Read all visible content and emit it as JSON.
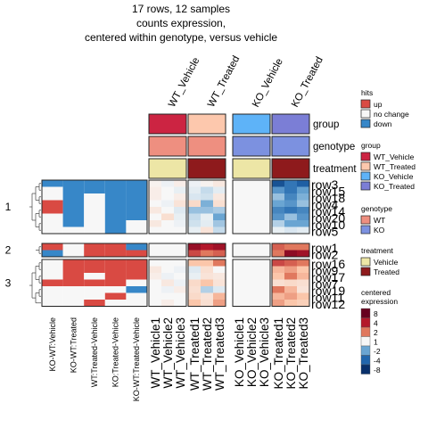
{
  "chart_data": {
    "type": "heatmap",
    "title_lines": [
      "17 rows, 12 samples",
      "counts expression,",
      "centered within genotype, versus vehicle"
    ],
    "column_groups": [
      "WT_Vehicle",
      "WT_Treated",
      "KO_Vehicle",
      "KO_Treated"
    ],
    "columns": [
      "WT_Vehicle1",
      "WT_Vehicle2",
      "WT_Vehicle3",
      "WT_Treated1",
      "WT_Treated2",
      "WT_Treated3",
      "KO_Vehicle1",
      "KO_Vehicle2",
      "KO_Vehicle3",
      "KO_Treated1",
      "KO_Treated2",
      "KO_Treated3"
    ],
    "column_annotation_labels": [
      "group",
      "genotype",
      "treatment"
    ],
    "column_annotations": {
      "group": [
        "WT_Vehicle",
        "WT_Vehicle",
        "WT_Vehicle",
        "WT_Treated",
        "WT_Treated",
        "WT_Treated",
        "KO_Vehicle",
        "KO_Vehicle",
        "KO_Vehicle",
        "KO_Treated",
        "KO_Treated",
        "KO_Treated"
      ],
      "genotype": [
        "WT",
        "WT",
        "WT",
        "WT",
        "WT",
        "WT",
        "KO",
        "KO",
        "KO",
        "KO",
        "KO",
        "KO"
      ],
      "treatment": [
        "Vehicle",
        "Vehicle",
        "Vehicle",
        "Treated",
        "Treated",
        "Treated",
        "Vehicle",
        "Vehicle",
        "Vehicle",
        "Treated",
        "Treated",
        "Treated"
      ]
    },
    "hit_columns": [
      "KO-WT:Vehicle",
      "KO-WT:Treated",
      "WT:Treated-Vehicle",
      "KO:Treated-Vehicle",
      "KO-WT:Treated-Vehicle"
    ],
    "row_clusters": [
      {
        "label": "1",
        "rows": [
          "row3",
          "row15",
          "row18",
          "row4",
          "row14",
          "row20",
          "row10",
          "row5"
        ]
      },
      {
        "label": "2",
        "rows": [
          "row1",
          "row2"
        ]
      },
      {
        "label": "3",
        "rows": [
          "row16",
          "row9",
          "row17",
          "row7",
          "row19",
          "row11",
          "row12"
        ]
      }
    ],
    "hits": {
      "row3": [
        "down",
        "down",
        "down",
        "down",
        "down"
      ],
      "row15": [
        "no change",
        "down",
        "down",
        "down",
        "down"
      ],
      "row18": [
        "no change",
        "down",
        "no change",
        "down",
        "down"
      ],
      "row4": [
        "up",
        "down",
        "no change",
        "down",
        "down"
      ],
      "row14": [
        "up",
        "down",
        "no change",
        "down",
        "down"
      ],
      "row20": [
        "no change",
        "down",
        "no change",
        "down",
        "down"
      ],
      "row10": [
        "no change",
        "down",
        "no change",
        "down",
        "no change"
      ],
      "row5": [
        "no change",
        "no change",
        "no change",
        "down",
        "no change"
      ],
      "row1": [
        "up",
        "no change",
        "up",
        "up",
        "down"
      ],
      "row2": [
        "down",
        "no change",
        "up",
        "up",
        "up"
      ],
      "row16": [
        "no change",
        "up",
        "up",
        "up",
        "up"
      ],
      "row9": [
        "no change",
        "up",
        "up",
        "up",
        "up"
      ],
      "row17": [
        "no change",
        "up",
        "no change",
        "up",
        "up"
      ],
      "row7": [
        "up",
        "up",
        "up",
        "up",
        "no change"
      ],
      "row19": [
        "no change",
        "no change",
        "no change",
        "no change",
        "down"
      ],
      "row11": [
        "no change",
        "no change",
        "no change",
        "up",
        "no change"
      ],
      "row12": [
        "no change",
        "no change",
        "up",
        "no change",
        "no change"
      ]
    },
    "values": {
      "row3": [
        0.1,
        -0.2,
        0.2,
        -0.2,
        0.1,
        0.3,
        0.0,
        0.0,
        0.0,
        -5.5,
        -3.5,
        -4.5
      ],
      "row15": [
        0.2,
        0.0,
        -0.3,
        -0.4,
        -1.0,
        -0.4,
        0.0,
        0.0,
        0.0,
        -2.5,
        -3.5,
        -2.2
      ],
      "row18": [
        0.2,
        0.0,
        0.2,
        -0.6,
        -0.8,
        0.3,
        0.0,
        0.0,
        0.0,
        -1.5,
        -3.0,
        -1.8
      ],
      "row4": [
        0.0,
        -0.2,
        0.4,
        0.6,
        -1.8,
        0.5,
        0.0,
        0.0,
        0.0,
        -2.0,
        -2.5,
        -1.5
      ],
      "row14": [
        0.3,
        0.0,
        -0.5,
        -1.5,
        -1.5,
        -1.3,
        0.0,
        0.0,
        0.0,
        -3.0,
        -3.5,
        -3.0
      ],
      "row20": [
        0.0,
        0.5,
        -0.3,
        -1.0,
        -0.3,
        -2.0,
        0.0,
        0.0,
        0.0,
        -2.5,
        -1.5,
        -2.5
      ],
      "row10": [
        0.3,
        0.0,
        -0.2,
        -0.8,
        -0.4,
        -1.4,
        0.0,
        0.0,
        0.0,
        -1.2,
        -2.0,
        -2.0
      ],
      "row5": [
        0.0,
        0.0,
        0.0,
        -0.3,
        0.4,
        -1.0,
        0.0,
        0.0,
        0.0,
        -0.3,
        -0.6,
        -0.4
      ],
      "row1": [
        0.0,
        0.0,
        0.0,
        5.5,
        4.0,
        5.0,
        0.0,
        0.0,
        0.0,
        2.5,
        2.0,
        2.0
      ],
      "row2": [
        0.0,
        0.0,
        0.0,
        3.0,
        2.0,
        2.5,
        0.0,
        0.0,
        0.0,
        2.0,
        6.0,
        5.0
      ],
      "row16": [
        0.0,
        0.0,
        0.0,
        1.0,
        1.0,
        2.0,
        0.0,
        0.0,
        0.0,
        3.0,
        2.5,
        2.0
      ],
      "row9": [
        0.3,
        0.0,
        -0.2,
        -0.5,
        0.5,
        0.0,
        0.0,
        0.0,
        0.0,
        1.2,
        1.5,
        1.0
      ],
      "row17": [
        0.2,
        -0.2,
        0.0,
        -0.3,
        0.4,
        0.3,
        0.0,
        0.0,
        0.0,
        1.0,
        2.0,
        1.2
      ],
      "row7": [
        0.0,
        0.3,
        -0.2,
        0.6,
        1.0,
        0.4,
        0.0,
        0.0,
        0.0,
        0.5,
        0.6,
        0.5
      ],
      "row19": [
        0.0,
        -0.2,
        0.2,
        0.5,
        -1.2,
        -0.5,
        0.0,
        0.0,
        0.0,
        2.0,
        1.2,
        0.4
      ],
      "row11": [
        0.0,
        0.0,
        0.0,
        0.6,
        0.4,
        1.2,
        0.0,
        0.0,
        0.0,
        1.2,
        1.5,
        1.0
      ],
      "row12": [
        0.0,
        0.2,
        0.0,
        1.0,
        0.5,
        1.5,
        0.0,
        0.0,
        0.0,
        1.5,
        1.0,
        0.8
      ]
    },
    "legend": {
      "hits": {
        "title": "hits",
        "entries": [
          "up",
          "no change",
          "down"
        ]
      },
      "group": {
        "title": "group",
        "entries": [
          "WT_Vehicle",
          "WT_Treated",
          "KO_Vehicle",
          "KO_Treated"
        ]
      },
      "genotype": {
        "title": "genotype",
        "entries": [
          "WT",
          "KO"
        ]
      },
      "treatment": {
        "title": "treatment",
        "entries": [
          "Vehicle",
          "Treated"
        ]
      },
      "expression": {
        "title_lines": [
          "centered",
          "expression"
        ],
        "breaks": [
          "8",
          "4",
          "2",
          "1",
          "-2",
          "-4",
          "-8"
        ]
      }
    },
    "colors": {
      "hits": {
        "up": "#d94a43",
        "no change": "#f7f7f7",
        "down": "#3787c8"
      },
      "group": {
        "WT_Vehicle": "#cc2442",
        "WT_Treated": "#fdc8ad",
        "KO_Vehicle": "#5eb3f8",
        "KO_Treated": "#7b7ed6"
      },
      "genotype": {
        "WT": "#ee8f80",
        "KO": "#7c91e0"
      },
      "treatment": {
        "Vehicle": "#ede6a6",
        "Treated": "#8e1a1c"
      },
      "expression_ramp": [
        "#08306b",
        "#2166ac",
        "#6aa5d2",
        "#c5dbeb",
        "#f7f7f7",
        "#fbc6aa",
        "#e0785e",
        "#b3182b",
        "#67001f"
      ]
    }
  }
}
